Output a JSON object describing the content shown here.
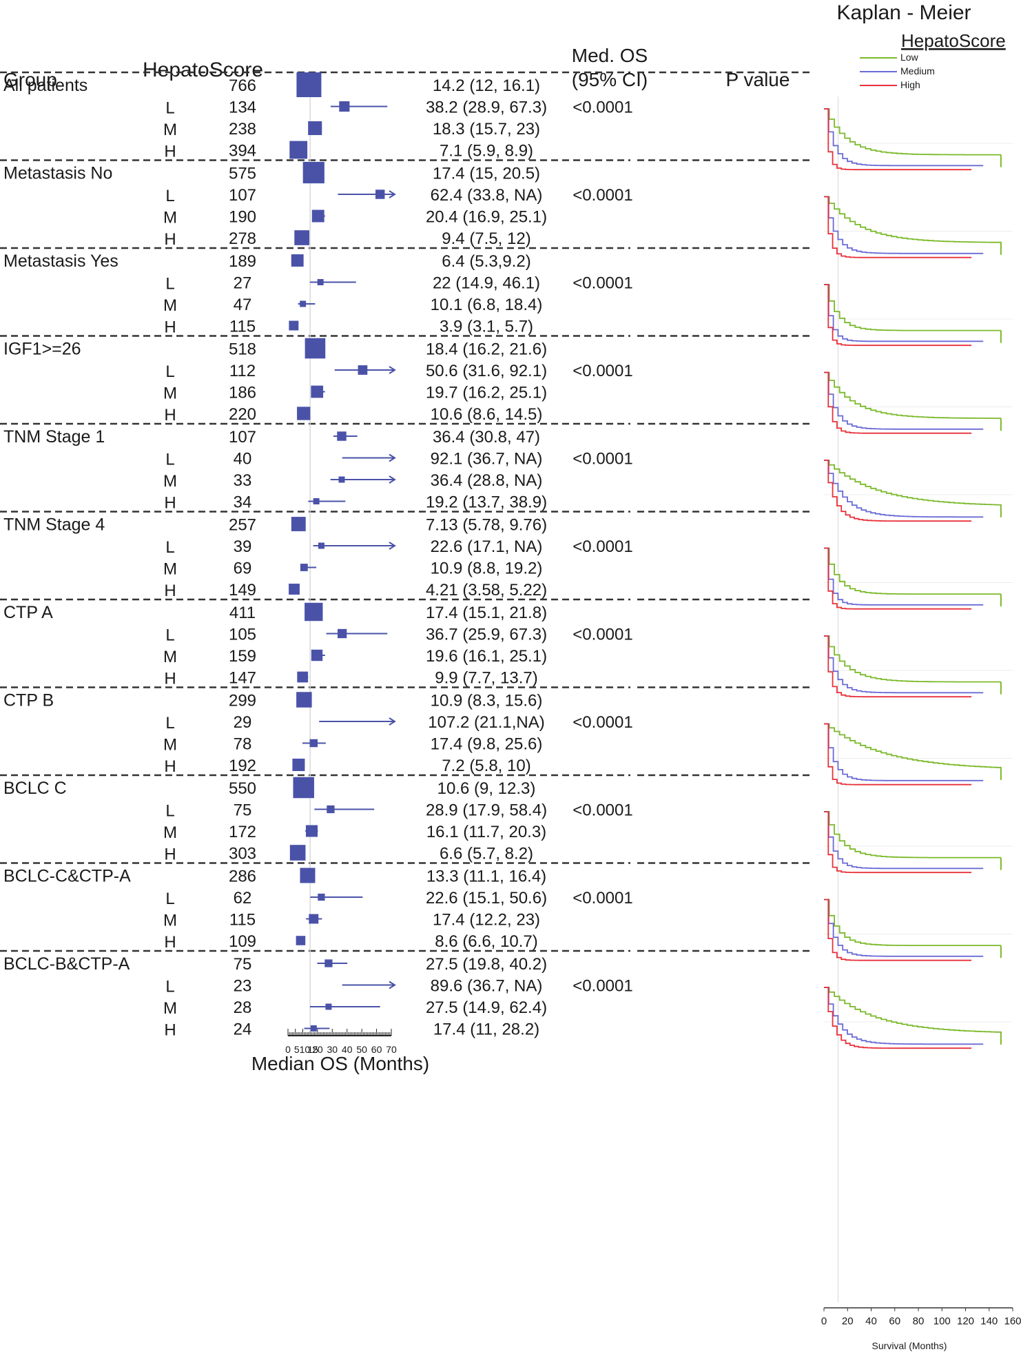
{
  "header": {
    "group": "Group",
    "hepatoscore": "HepatoScore",
    "medos_line1": "Med. OS",
    "medos_line2": "(95% CI)",
    "pvalue": "P value"
  },
  "km": {
    "title": "Kaplan - Meier",
    "legend_title": "HepatoScore",
    "legend": [
      {
        "label": "Low",
        "color": "#7ab929"
      },
      {
        "label": "Medium",
        "color": "#6a6ad6"
      },
      {
        "label": "High",
        "color": "#e8303a"
      }
    ],
    "xaxis_ticks": [
      "0",
      "20",
      "40",
      "60",
      "80",
      "100",
      "120",
      "140",
      "160"
    ],
    "xlabel": "Survival (Months)"
  },
  "chart_data": {
    "type": "forest",
    "xlabel": "Median OS (Months)",
    "xticks": [
      "0",
      "5",
      "10",
      "15",
      "20",
      "30",
      "40",
      "50",
      "60",
      "70"
    ],
    "xlim": [
      0,
      70
    ],
    "reference_line": 15,
    "marker_color": "#4a52a8",
    "groups": [
      {
        "name": "All patients",
        "p": "<0.0001",
        "rows": [
          {
            "level": "",
            "n": "766",
            "est": 14.2,
            "lo": 12,
            "hi": 16.1,
            "ci": "14.2 (12, 16.1)"
          },
          {
            "level": "L",
            "n": "134",
            "est": 38.2,
            "lo": 28.9,
            "hi": 67.3,
            "ci": "38.2 (28.9, 67.3)"
          },
          {
            "level": "M",
            "n": "238",
            "est": 18.3,
            "lo": 15.7,
            "hi": 23,
            "ci": "18.3 (15.7, 23)"
          },
          {
            "level": "H",
            "n": "394",
            "est": 7.1,
            "lo": 5.9,
            "hi": 8.9,
            "ci": "7.1 (5.9, 8.9)"
          }
        ]
      },
      {
        "name": "Metastasis No",
        "p": "<0.0001",
        "rows": [
          {
            "level": "",
            "n": "575",
            "est": 17.4,
            "lo": 15,
            "hi": 20.5,
            "ci": "17.4 (15, 20.5)"
          },
          {
            "level": "L",
            "n": "107",
            "est": 62.4,
            "lo": 33.8,
            "hi": "NA",
            "ci": "62.4 (33.8, NA)"
          },
          {
            "level": "M",
            "n": "190",
            "est": 20.4,
            "lo": 16.9,
            "hi": 25.1,
            "ci": "20.4 (16.9, 25.1)"
          },
          {
            "level": "H",
            "n": "278",
            "est": 9.4,
            "lo": 7.5,
            "hi": 12,
            "ci": "9.4 (7.5, 12)"
          }
        ]
      },
      {
        "name": "Metastasis Yes",
        "p": "<0.0001",
        "rows": [
          {
            "level": "",
            "n": "189",
            "est": 6.4,
            "lo": 5.3,
            "hi": 9.2,
            "ci": "6.4 (5.3,9.2)"
          },
          {
            "level": "L",
            "n": "27",
            "est": 22,
            "lo": 14.9,
            "hi": 46.1,
            "ci": "22 (14.9, 46.1)"
          },
          {
            "level": "M",
            "n": "47",
            "est": 10.1,
            "lo": 6.8,
            "hi": 18.4,
            "ci": "10.1 (6.8, 18.4)"
          },
          {
            "level": "H",
            "n": "115",
            "est": 3.9,
            "lo": 3.1,
            "hi": 5.7,
            "ci": "3.9 (3.1, 5.7)"
          }
        ]
      },
      {
        "name": "IGF1>=26",
        "p": "<0.0001",
        "rows": [
          {
            "level": "",
            "n": "518",
            "est": 18.4,
            "lo": 16.2,
            "hi": 21.6,
            "ci": "18.4 (16.2, 21.6)"
          },
          {
            "level": "L",
            "n": "112",
            "est": 50.6,
            "lo": 31.6,
            "hi": 92.1,
            "ci": "50.6 (31.6, 92.1)"
          },
          {
            "level": "M",
            "n": "186",
            "est": 19.7,
            "lo": 16.2,
            "hi": 25.1,
            "ci": "19.7 (16.2, 25.1)"
          },
          {
            "level": "H",
            "n": "220",
            "est": 10.6,
            "lo": 8.6,
            "hi": 14.5,
            "ci": "10.6 (8.6, 14.5)"
          }
        ]
      },
      {
        "name": "TNM Stage 1",
        "p": "<0.0001",
        "rows": [
          {
            "level": "",
            "n": "107",
            "est": 36.4,
            "lo": 30.8,
            "hi": 47,
            "ci": "36.4 (30.8, 47)"
          },
          {
            "level": "L",
            "n": "40",
            "est": 92.1,
            "lo": 36.7,
            "hi": "NA",
            "ci": "92.1 (36.7, NA)"
          },
          {
            "level": "M",
            "n": "33",
            "est": 36.4,
            "lo": 28.8,
            "hi": "NA",
            "ci": "36.4 (28.8, NA)"
          },
          {
            "level": "H",
            "n": "34",
            "est": 19.2,
            "lo": 13.7,
            "hi": 38.9,
            "ci": "19.2 (13.7, 38.9)"
          }
        ]
      },
      {
        "name": "TNM Stage 4",
        "p": "<0.0001",
        "rows": [
          {
            "level": "",
            "n": "257",
            "est": 7.13,
            "lo": 5.78,
            "hi": 9.76,
            "ci": "7.13 (5.78, 9.76)"
          },
          {
            "level": "L",
            "n": "39",
            "est": 22.6,
            "lo": 17.1,
            "hi": "NA",
            "ci": "22.6 (17.1, NA)"
          },
          {
            "level": "M",
            "n": "69",
            "est": 10.9,
            "lo": 8.8,
            "hi": 19.2,
            "ci": "10.9 (8.8, 19.2)"
          },
          {
            "level": "H",
            "n": "149",
            "est": 4.21,
            "lo": 3.58,
            "hi": 5.22,
            "ci": "4.21 (3.58, 5.22)"
          }
        ]
      },
      {
        "name": "CTP A",
        "p": "<0.0001",
        "rows": [
          {
            "level": "",
            "n": "411",
            "est": 17.4,
            "lo": 15.1,
            "hi": 21.8,
            "ci": "17.4 (15.1, 21.8)"
          },
          {
            "level": "L",
            "n": "105",
            "est": 36.7,
            "lo": 25.9,
            "hi": 67.3,
            "ci": "36.7 (25.9, 67.3)"
          },
          {
            "level": "M",
            "n": "159",
            "est": 19.6,
            "lo": 16.1,
            "hi": 25.1,
            "ci": "19.6 (16.1, 25.1)"
          },
          {
            "level": "H",
            "n": "147",
            "est": 9.9,
            "lo": 7.7,
            "hi": 13.7,
            "ci": "9.9 (7.7, 13.7)"
          }
        ]
      },
      {
        "name": "CTP B",
        "p": "<0.0001",
        "rows": [
          {
            "level": "",
            "n": "299",
            "est": 10.9,
            "lo": 8.3,
            "hi": 15.6,
            "ci": "10.9 (8.3, 15.6)"
          },
          {
            "level": "L",
            "n": "29",
            "est": 107.2,
            "lo": 21.1,
            "hi": "NA",
            "ci": "107.2 (21.1,NA)"
          },
          {
            "level": "M",
            "n": "78",
            "est": 17.4,
            "lo": 9.8,
            "hi": 25.6,
            "ci": "17.4 (9.8, 25.6)"
          },
          {
            "level": "H",
            "n": "192",
            "est": 7.2,
            "lo": 5.8,
            "hi": 10,
            "ci": "7.2 (5.8, 10)"
          }
        ]
      },
      {
        "name": "BCLC C",
        "p": "<0.0001",
        "rows": [
          {
            "level": "",
            "n": "550",
            "est": 10.6,
            "lo": 9,
            "hi": 12.3,
            "ci": "10.6 (9, 12.3)"
          },
          {
            "level": "L",
            "n": "75",
            "est": 28.9,
            "lo": 17.9,
            "hi": 58.4,
            "ci": "28.9 (17.9, 58.4)"
          },
          {
            "level": "M",
            "n": "172",
            "est": 16.1,
            "lo": 11.7,
            "hi": 20.3,
            "ci": "16.1 (11.7, 20.3)"
          },
          {
            "level": "H",
            "n": "303",
            "est": 6.6,
            "lo": 5.7,
            "hi": 8.2,
            "ci": "6.6 (5.7, 8.2)"
          }
        ]
      },
      {
        "name": "BCLC-C&CTP-A",
        "p": "<0.0001",
        "rows": [
          {
            "level": "",
            "n": "286",
            "est": 13.3,
            "lo": 11.1,
            "hi": 16.4,
            "ci": "13.3 (11.1, 16.4)"
          },
          {
            "level": "L",
            "n": "62",
            "est": 22.6,
            "lo": 15.1,
            "hi": 50.6,
            "ci": "22.6 (15.1, 50.6)"
          },
          {
            "level": "M",
            "n": "115",
            "est": 17.4,
            "lo": 12.2,
            "hi": 23,
            "ci": "17.4 (12.2, 23)"
          },
          {
            "level": "H",
            "n": "109",
            "est": 8.6,
            "lo": 6.6,
            "hi": 10.7,
            "ci": "8.6 (6.6, 10.7)"
          }
        ]
      },
      {
        "name": "BCLC-B&CTP-A",
        "p": "<0.0001",
        "rows": [
          {
            "level": "",
            "n": "75",
            "est": 27.5,
            "lo": 19.8,
            "hi": 40.2,
            "ci": "27.5 (19.8, 40.2)"
          },
          {
            "level": "L",
            "n": "23",
            "est": 89.6,
            "lo": 36.7,
            "hi": "NA",
            "ci": "89.6 (36.7, NA)"
          },
          {
            "level": "M",
            "n": "28",
            "est": 27.5,
            "lo": 14.9,
            "hi": 62.4,
            "ci": "27.5 (14.9, 62.4)"
          },
          {
            "level": "H",
            "n": "24",
            "est": 17.4,
            "lo": 11,
            "hi": 28.2,
            "ci": "17.4 (11, 28.2)"
          }
        ]
      }
    ]
  }
}
